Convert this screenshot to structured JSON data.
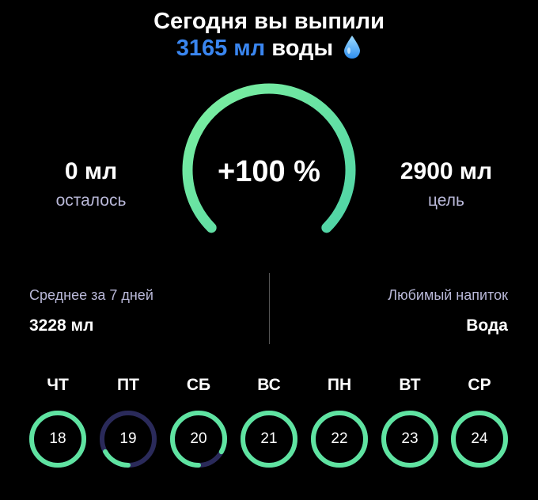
{
  "header": {
    "line1": "Сегодня вы выпили",
    "amount": "3165 мл",
    "line2_suffix": "воды",
    "icon": "water-drop-icon"
  },
  "gauge": {
    "label": "+100 %",
    "progress_percent": 100
  },
  "remaining": {
    "value": "0 мл",
    "label": "осталось"
  },
  "goal": {
    "value": "2900 мл",
    "label": "цель"
  },
  "average": {
    "label": "Среднее за 7 дней",
    "value": "3228 мл"
  },
  "favorite": {
    "label": "Любимый напиток",
    "value": "Вода"
  },
  "week": [
    {
      "day": "ЧТ",
      "date": "18",
      "progress": 1.0
    },
    {
      "day": "ПТ",
      "date": "19",
      "progress": 0.17
    },
    {
      "day": "СБ",
      "date": "20",
      "progress": 0.83
    },
    {
      "day": "ВС",
      "date": "21",
      "progress": 1.0
    },
    {
      "day": "ПН",
      "date": "22",
      "progress": 1.0
    },
    {
      "day": "ВТ",
      "date": "23",
      "progress": 1.0
    },
    {
      "day": "СР",
      "date": "24",
      "progress": 1.0
    }
  ],
  "colors": {
    "accent": "#3a86f0",
    "progress": "#5fe3a1",
    "track": "#2a2a5a",
    "muted_text": "#b9b8d8"
  }
}
